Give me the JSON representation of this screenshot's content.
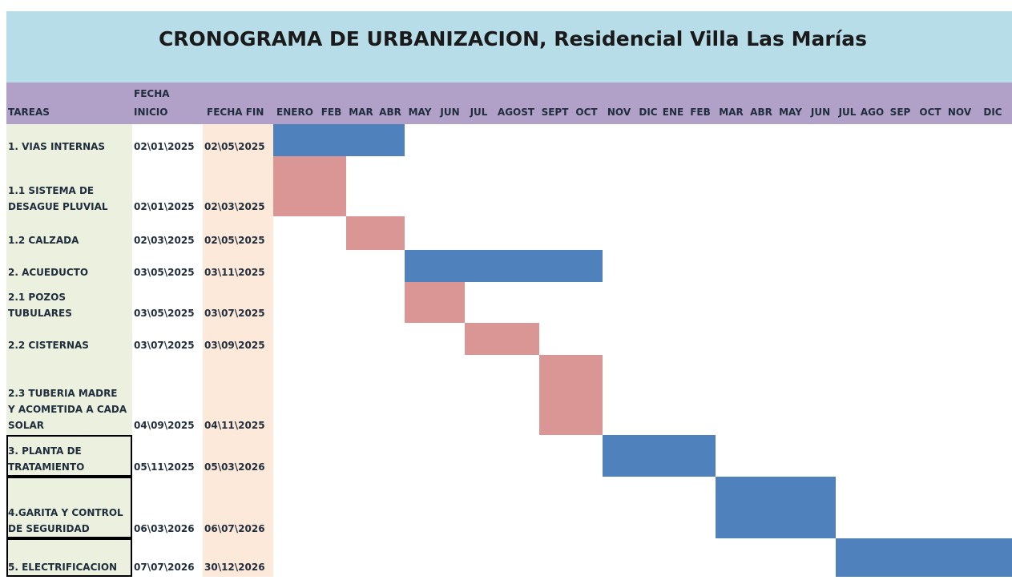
{
  "header": {
    "title": "CRONOGRAMA DE URBANIZACION, Residencial Villa Las Marías"
  },
  "table": {
    "columns": [
      "TAREAS",
      "FECHA INICIO",
      "FECHA FIN"
    ],
    "months": [
      "ENERO",
      "FEB",
      "MAR",
      "ABR",
      "MAY",
      "JUN",
      "JUL",
      "AGOST",
      "SEPT",
      "OCT",
      "NOV",
      "DIC",
      "ENE",
      "FEB",
      "MAR",
      "ABR",
      "MAY",
      "JUN",
      "JUL",
      "AGO",
      "SEP",
      "OCT",
      "NOV",
      "DIC"
    ],
    "tasks": [
      {
        "name": "1. VIAS INTERNAS",
        "start": "02\\01\\2025",
        "end": "02\\05\\2025",
        "color": "#4f81bd"
      },
      {
        "name": "1.1 SISTEMA DE DESAGUE PLUVIAL",
        "start": "02\\01\\2025",
        "end": "02\\03\\2025",
        "color": "#da9694"
      },
      {
        "name": "1.2 CALZADA",
        "start": "02\\03\\2025",
        "end": "02\\05\\2025",
        "color": "#da9694"
      },
      {
        "name": "2. ACUEDUCTO",
        "start": "03\\05\\2025",
        "end": "03\\11\\2025",
        "color": "#4f81bd"
      },
      {
        "name": "2.1 POZOS TUBULARES",
        "start": "03\\05\\2025",
        "end": "03\\07\\2025",
        "color": "#da9694"
      },
      {
        "name": "2.2 CISTERNAS",
        "start": "03\\07\\2025",
        "end": "03\\09\\2025",
        "color": "#da9694"
      },
      {
        "name": "2.3 TUBERIA MADRE Y ACOMETIDA A CADA SOLAR",
        "start": "04\\09\\2025",
        "end": "04\\11\\2025",
        "color": "#da9694"
      },
      {
        "name": "3. PLANTA DE TRATAMIENTO",
        "start": "05\\11\\2025",
        "end": "05\\03\\2026",
        "color": "#4f81bd"
      },
      {
        "name": "4.GARITA Y CONTROL DE SEGURIDAD",
        "start": "06\\03\\2026",
        "end": "06\\07\\2026",
        "color": "#4f81bd"
      },
      {
        "name": "5. ELECTRIFICACION",
        "start": "07\\07\\2026",
        "end": "30\\12\\2026",
        "color": "#4f81bd"
      }
    ]
  }
}
